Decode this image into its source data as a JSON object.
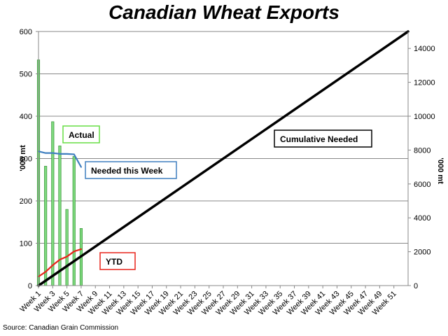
{
  "title": "Canadian Wheat Exports",
  "source": "Source: Canadian Grain Commission",
  "chart_data": {
    "type": "bar",
    "title": "Canadian Wheat Exports",
    "xlabel": "",
    "ylabel": "'000 mt",
    "y2label": "'000 mt",
    "ylim": [
      0,
      600
    ],
    "y2lim": [
      0,
      15000
    ],
    "yticks": [
      0,
      100,
      200,
      300,
      400,
      500,
      600
    ],
    "y2ticks": [
      0,
      2000,
      4000,
      6000,
      8000,
      10000,
      12000,
      14000
    ],
    "xtick_labels": [
      "Week 1",
      "Week 3",
      "Week 5",
      "Week 7",
      "Week 9",
      "Week 11",
      "Week 13",
      "Week 15",
      "Week 17",
      "Week 19",
      "Week 21",
      "Week 23",
      "Week 25",
      "Week 27",
      "Week 29",
      "Week 31",
      "Week 33",
      "Week 35",
      "Week 37",
      "Week 39",
      "Week 41",
      "Week 43",
      "Week 45",
      "Week 47",
      "Week 49",
      "Week 51"
    ],
    "grid": "horizontal",
    "series": [
      {
        "name": "Actual",
        "type": "bar",
        "axis": "left",
        "color": "#7dd87d",
        "x": [
          1,
          2,
          3,
          4,
          5,
          6,
          7
        ],
        "values": [
          533,
          282,
          387,
          330,
          180,
          305,
          135
        ]
      },
      {
        "name": "Needed this Week",
        "type": "line",
        "axis": "left",
        "color": "#3f7fbf",
        "x": [
          1,
          2,
          3,
          4,
          5,
          6,
          7
        ],
        "values": [
          317,
          313,
          313,
          311,
          311,
          310,
          280
        ]
      },
      {
        "name": "YTD",
        "type": "line",
        "axis": "right",
        "color": "#e8231a",
        "x": [
          1,
          2,
          3,
          4,
          5,
          6,
          7
        ],
        "values": [
          533,
          815,
          1202,
          1532,
          1712,
          2017,
          2152
        ]
      },
      {
        "name": "Cumulative Needed",
        "type": "line",
        "axis": "right",
        "color": "#000000",
        "x": [
          1,
          53
        ],
        "values": [
          0,
          15000
        ]
      }
    ],
    "annotations": [
      {
        "text": "Actual",
        "border": "#66dd44"
      },
      {
        "text": "Needed this Week",
        "border": "#3f7fbf"
      },
      {
        "text": "YTD",
        "border": "#e8231a"
      },
      {
        "text": "Cumulative Needed",
        "border": "#000000"
      }
    ]
  }
}
